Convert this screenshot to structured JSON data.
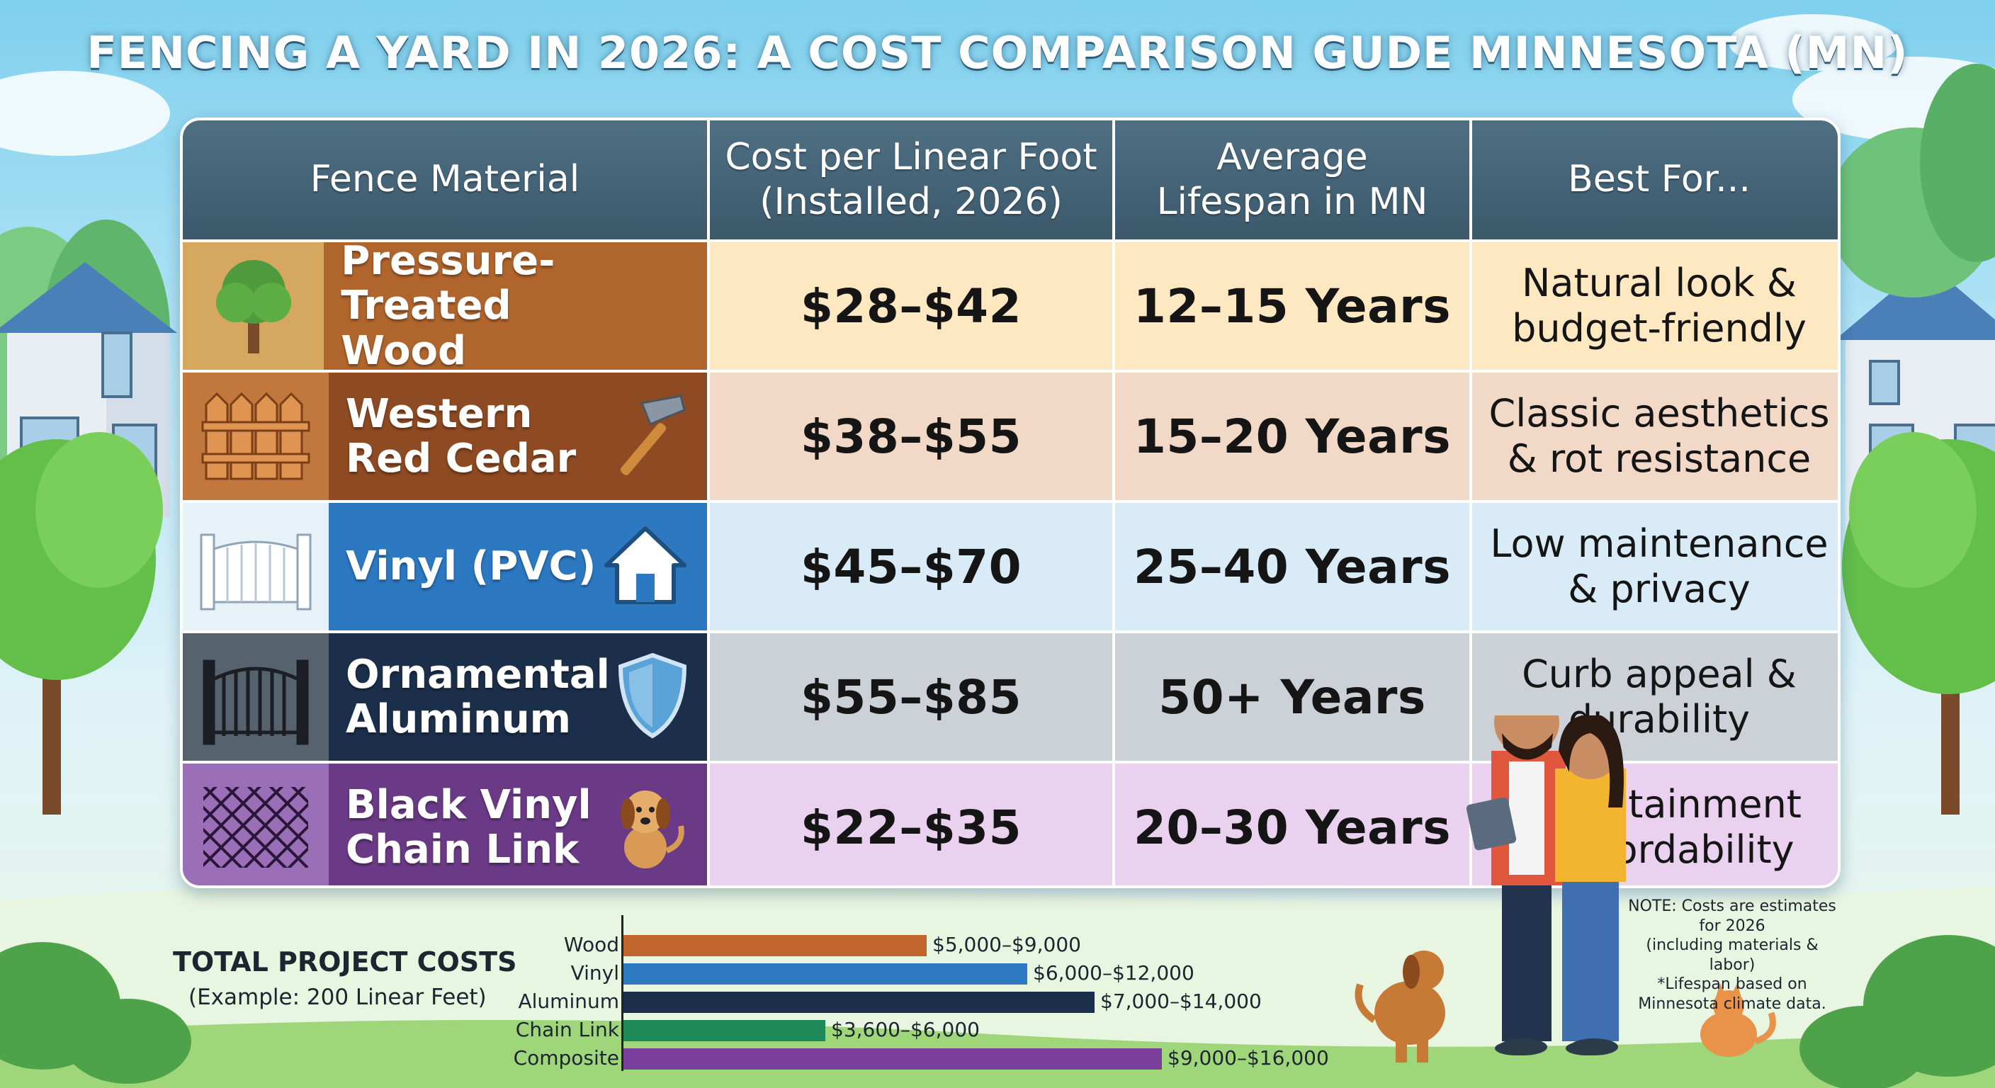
{
  "title": "FENCING A YARD IN 2026: A COST COMPARISON GUDE MINNESOTA (MN)",
  "colors": {
    "header": "#466477",
    "wood": "#b0652d",
    "cedar": "#8e4a22",
    "vinyl": "#2c78c1",
    "aluminum": "#1c2f4a",
    "chainlink": "#6b3a86"
  },
  "table": {
    "headers": [
      "Fence Material",
      "Cost per Linear Foot\n(Installed, 2026)",
      "Average\nLifespan in MN",
      "Best For..."
    ],
    "rows": [
      {
        "material": "Pressure-Treated\nWood",
        "icon": "tree-icon",
        "side_icon": "",
        "cost": "$28–$42",
        "lifespan": "12–15 Years",
        "best_for": "Natural look &\nbudget-friendly"
      },
      {
        "material": "Western\nRed Cedar",
        "icon": "wood-fence-icon",
        "side_icon": "hammer-icon",
        "cost": "$38–$55",
        "lifespan": "15–20 Years",
        "best_for": "Classic aesthetics\n& rot resistance"
      },
      {
        "material": "Vinyl (PVC)",
        "icon": "vinyl-fence-icon",
        "side_icon": "house-icon",
        "cost": "$45–$70",
        "lifespan": "25–40 Years",
        "best_for": "Low maintenance\n& privacy"
      },
      {
        "material": "Ornamental\nAluminum",
        "icon": "iron-gate-icon",
        "side_icon": "shield-icon",
        "cost": "$55–$85",
        "lifespan": "50+ Years",
        "best_for": "Curb appeal &\ndurability"
      },
      {
        "material": "Black Vinyl\nChain Link",
        "icon": "chain-link-icon",
        "side_icon": "dog-icon",
        "cost": "$22–$35",
        "lifespan": "20–30 Years",
        "best_for": "ontainment\nffordability"
      }
    ]
  },
  "total_costs": {
    "title": "TOTAL PROJECT COSTS",
    "subtitle": "(Example: 200 Linear Feet)"
  },
  "chart_data": {
    "type": "bar",
    "orientation": "horizontal",
    "title": "TOTAL PROJECT COSTS",
    "subtitle": "(Example: 200 Linear Feet)",
    "categories": [
      "Wood",
      "Vinyl",
      "Aluminum",
      "Chain Link",
      "Composite"
    ],
    "ranges": [
      [
        5000,
        9000
      ],
      [
        6000,
        12000
      ],
      [
        7000,
        14000
      ],
      [
        3600,
        6000
      ],
      [
        9000,
        16000
      ]
    ],
    "value_labels": [
      "$5,000–$9,000",
      "$6,000–$12,000",
      "$7,000–$14,000",
      "$3,600–$6,000",
      "$9,000–$16,000"
    ],
    "colors": [
      "#c0662d",
      "#2d7ac2",
      "#1c2f4a",
      "#1f8a57",
      "#7a3f9a"
    ],
    "grid": false,
    "legend": "none"
  },
  "note": "NOTE: Costs are estimates\nfor 2026\n(including materials & labor)\n*Lifespan based on\nMinnesota climate data."
}
